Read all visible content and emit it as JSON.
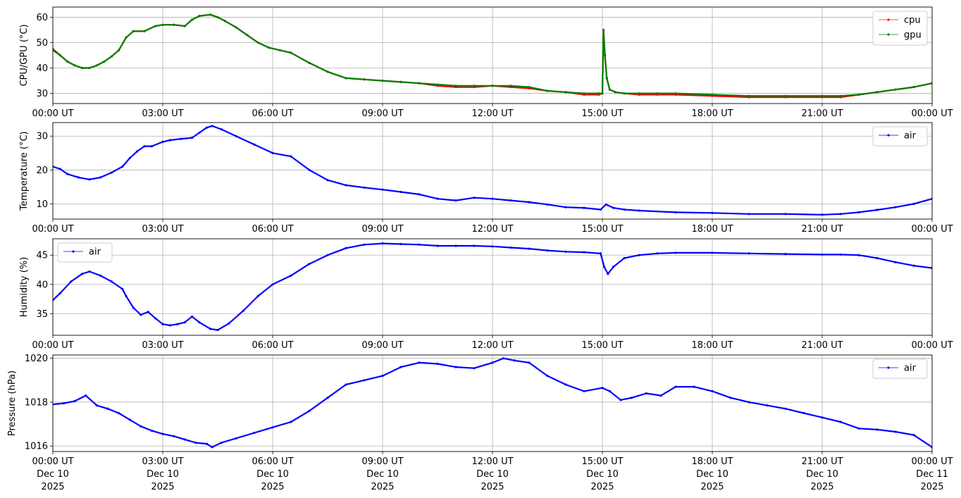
{
  "chart_data": [
    {
      "type": "line",
      "ylabel": "CPU/GPU (°C)",
      "ylim": [
        26,
        64
      ],
      "yticks": [
        30,
        40,
        50,
        60
      ],
      "xlim": [
        "00:00",
        "24:00"
      ],
      "xticks": [
        "00:00 UT",
        "03:00 UT",
        "06:00 UT",
        "09:00 UT",
        "12:00 UT",
        "15:00 UT",
        "18:00 UT",
        "21:00 UT",
        "00:00 UT"
      ],
      "grid": true,
      "legend": "top-right",
      "series": [
        {
          "name": "cpu",
          "color": "#ff0000",
          "x": [
            0,
            0.2,
            0.4,
            0.6,
            0.8,
            1.0,
            1.2,
            1.4,
            1.6,
            1.8,
            2.0,
            2.2,
            2.5,
            2.8,
            3.0,
            3.3,
            3.6,
            3.8,
            4.0,
            4.3,
            4.5,
            4.7,
            5.0,
            5.3,
            5.6,
            5.9,
            6.2,
            6.5,
            7.0,
            7.5,
            8.0,
            8.5,
            9.0,
            9.5,
            10.0,
            10.5,
            11.0,
            11.5,
            12.0,
            12.5,
            13.0,
            13.5,
            14.0,
            14.5,
            14.9,
            15.0,
            15.03,
            15.07,
            15.12,
            15.2,
            15.35,
            15.6,
            16.0,
            16.5,
            17.0,
            18.0,
            19.0,
            20.0,
            21.0,
            21.5,
            22.0,
            22.5,
            23.0,
            23.5,
            24.0
          ],
          "y": [
            47.5,
            45,
            42.5,
            41,
            40,
            40,
            41,
            42.5,
            44.5,
            47,
            52,
            54.5,
            54.5,
            56.5,
            57,
            57,
            56.5,
            59,
            60.5,
            61,
            60,
            58.5,
            56,
            53,
            50,
            48,
            47,
            46,
            42,
            38.5,
            36,
            35.5,
            35,
            34.5,
            34,
            33,
            32.5,
            32.5,
            33,
            32.5,
            32,
            31,
            30.5,
            29.5,
            29.5,
            30,
            55,
            45,
            36,
            31.5,
            30.5,
            30,
            29.5,
            29.5,
            29.5,
            29,
            28.5,
            28.5,
            28.5,
            28.5,
            29.5,
            30.5,
            31.5,
            32.5,
            34
          ]
        },
        {
          "name": "gpu",
          "color": "#008000",
          "x": [
            0,
            0.2,
            0.4,
            0.6,
            0.8,
            1.0,
            1.2,
            1.4,
            1.6,
            1.8,
            2.0,
            2.2,
            2.5,
            2.8,
            3.0,
            3.3,
            3.6,
            3.8,
            4.0,
            4.3,
            4.5,
            4.7,
            5.0,
            5.3,
            5.6,
            5.9,
            6.2,
            6.5,
            7.0,
            7.5,
            8.0,
            8.5,
            9.0,
            9.5,
            10.0,
            10.5,
            11.0,
            11.5,
            12.0,
            12.5,
            13.0,
            13.5,
            14.0,
            14.5,
            14.9,
            15.0,
            15.03,
            15.07,
            15.12,
            15.2,
            15.35,
            15.6,
            16.0,
            16.5,
            17.0,
            18.0,
            19.0,
            20.0,
            21.0,
            21.5,
            22.0,
            22.5,
            23.0,
            23.5,
            24.0
          ],
          "y": [
            47,
            45,
            42.5,
            41,
            40,
            40,
            41,
            42.5,
            44.5,
            47,
            52,
            54.5,
            54.5,
            56.5,
            57,
            57,
            56.5,
            59,
            60.5,
            61,
            60,
            58.5,
            56,
            53,
            50,
            48,
            47,
            46,
            42,
            38.5,
            36,
            35.5,
            35,
            34.5,
            34,
            33.5,
            33,
            33,
            33,
            33,
            32.5,
            31,
            30.5,
            30,
            30,
            30,
            55,
            45,
            36,
            31.5,
            30.5,
            30,
            30,
            30,
            30,
            29.5,
            29,
            29,
            29,
            29,
            29.5,
            30.5,
            31.5,
            32.5,
            34
          ]
        }
      ]
    },
    {
      "type": "line",
      "ylabel": "Temperature (°C)",
      "ylim": [
        5.5,
        34
      ],
      "yticks": [
        10,
        20,
        30
      ],
      "xlim": [
        "00:00",
        "24:00"
      ],
      "xticks": [
        "00:00 UT",
        "03:00 UT",
        "06:00 UT",
        "09:00 UT",
        "12:00 UT",
        "15:00 UT",
        "18:00 UT",
        "21:00 UT",
        "00:00 UT"
      ],
      "grid": true,
      "legend": "top-right",
      "series": [
        {
          "name": "air",
          "color": "#0000ff",
          "x": [
            0,
            0.2,
            0.4,
            0.7,
            1.0,
            1.3,
            1.6,
            1.9,
            2.1,
            2.3,
            2.5,
            2.7,
            3.0,
            3.2,
            3.5,
            3.8,
            4.0,
            4.2,
            4.35,
            4.6,
            5.0,
            5.5,
            6.0,
            6.5,
            7.0,
            7.5,
            8.0,
            8.5,
            9.0,
            9.5,
            10.0,
            10.5,
            11.0,
            11.5,
            12.0,
            12.5,
            13.0,
            13.5,
            14.0,
            14.5,
            14.95,
            15.1,
            15.3,
            15.6,
            16.0,
            17.0,
            18.0,
            19.0,
            20.0,
            21.0,
            21.5,
            22.0,
            22.5,
            23.0,
            23.5,
            24.0
          ],
          "y": [
            21,
            20.3,
            18.8,
            17.8,
            17.2,
            17.8,
            19.2,
            21,
            23.5,
            25.5,
            27,
            27,
            28.3,
            28.8,
            29.2,
            29.5,
            31,
            32.5,
            33,
            32,
            30,
            27.5,
            25,
            24,
            20,
            17,
            15.5,
            14.8,
            14.2,
            13.5,
            12.8,
            11.5,
            11,
            11.8,
            11.5,
            11,
            10.5,
            9.8,
            9,
            8.8,
            8.3,
            9.8,
            8.8,
            8.3,
            8,
            7.5,
            7.3,
            7,
            7,
            6.8,
            7,
            7.5,
            8.2,
            9,
            10,
            11.5
          ]
        }
      ]
    },
    {
      "type": "line",
      "ylabel": "Humidity (%)",
      "ylim": [
        31.3,
        47.8
      ],
      "yticks": [
        35,
        40,
        45
      ],
      "xlim": [
        "00:00",
        "24:00"
      ],
      "xticks": [
        "00:00 UT",
        "03:00 UT",
        "06:00 UT",
        "09:00 UT",
        "12:00 UT",
        "15:00 UT",
        "18:00 UT",
        "21:00 UT",
        "00:00 UT"
      ],
      "grid": true,
      "legend": "top-left",
      "series": [
        {
          "name": "air",
          "color": "#0000ff",
          "x": [
            0,
            0.2,
            0.5,
            0.8,
            1.0,
            1.3,
            1.6,
            1.9,
            2.0,
            2.2,
            2.4,
            2.6,
            2.8,
            3.0,
            3.2,
            3.4,
            3.6,
            3.8,
            4.0,
            4.3,
            4.5,
            4.8,
            5.2,
            5.6,
            6.0,
            6.5,
            7.0,
            7.5,
            8.0,
            8.5,
            9.0,
            9.5,
            10.0,
            10.5,
            11.0,
            11.5,
            12.0,
            12.5,
            13.0,
            13.5,
            14.0,
            14.5,
            14.95,
            15.05,
            15.15,
            15.3,
            15.6,
            16.0,
            16.5,
            17.0,
            18.0,
            19.0,
            20.0,
            21.0,
            21.5,
            22.0,
            22.5,
            23.0,
            23.5,
            24.0
          ],
          "y": [
            37.3,
            38.5,
            40.5,
            41.8,
            42.2,
            41.5,
            40.5,
            39.2,
            38,
            36,
            34.8,
            35.3,
            34.2,
            33.2,
            33,
            33.2,
            33.5,
            34.5,
            33.5,
            32.4,
            32.2,
            33.3,
            35.5,
            38,
            40,
            41.5,
            43.5,
            45,
            46.2,
            46.8,
            47,
            46.9,
            46.8,
            46.6,
            46.6,
            46.6,
            46.5,
            46.3,
            46.1,
            45.8,
            45.6,
            45.5,
            45.3,
            43,
            41.8,
            43,
            44.5,
            45,
            45.3,
            45.4,
            45.4,
            45.3,
            45.2,
            45.1,
            45.1,
            45,
            44.5,
            43.8,
            43.2,
            42.8
          ]
        }
      ]
    },
    {
      "type": "line",
      "ylabel": "Pressure (hPa)",
      "ylim": [
        1015.75,
        1020.15
      ],
      "yticks": [
        1016,
        1018,
        1020
      ],
      "xlim": [
        "2025-12-10 00:00",
        "2025-12-11 00:00"
      ],
      "xticks": [
        [
          "00:00 UT",
          "Dec 10",
          "2025"
        ],
        [
          "03:00 UT",
          "Dec 10",
          "2025"
        ],
        [
          "06:00 UT",
          "Dec 10",
          "2025"
        ],
        [
          "09:00 UT",
          "Dec 10",
          "2025"
        ],
        [
          "12:00 UT",
          "Dec 10",
          "2025"
        ],
        [
          "15:00 UT",
          "Dec 10",
          "2025"
        ],
        [
          "18:00 UT",
          "Dec 10",
          "2025"
        ],
        [
          "21:00 UT",
          "Dec 10",
          "2025"
        ],
        [
          "00:00 UT",
          "Dec 11",
          "2025"
        ]
      ],
      "grid": true,
      "legend": "top-right",
      "series": [
        {
          "name": "air",
          "color": "#0000ff",
          "x": [
            0,
            0.3,
            0.6,
            0.9,
            1.2,
            1.5,
            1.8,
            2.1,
            2.4,
            2.7,
            3.0,
            3.3,
            3.6,
            3.9,
            4.2,
            4.35,
            4.6,
            5.0,
            5.5,
            6.0,
            6.5,
            7.0,
            7.5,
            8.0,
            8.5,
            9.0,
            9.5,
            10.0,
            10.5,
            11.0,
            11.5,
            12.0,
            12.3,
            12.6,
            13.0,
            13.5,
            14.0,
            14.5,
            15.0,
            15.2,
            15.5,
            15.8,
            16.2,
            16.6,
            17.0,
            17.5,
            18.0,
            18.5,
            19.0,
            19.5,
            20.0,
            20.5,
            21.0,
            21.5,
            22.0,
            22.5,
            23.0,
            23.5,
            24.0
          ],
          "y": [
            1017.9,
            1017.95,
            1018.05,
            1018.3,
            1017.85,
            1017.7,
            1017.5,
            1017.2,
            1016.9,
            1016.7,
            1016.55,
            1016.45,
            1016.3,
            1016.15,
            1016.1,
            1015.95,
            1016.15,
            1016.35,
            1016.6,
            1016.85,
            1017.1,
            1017.6,
            1018.2,
            1018.8,
            1019.0,
            1019.2,
            1019.6,
            1019.8,
            1019.75,
            1019.6,
            1019.55,
            1019.8,
            1020.0,
            1019.9,
            1019.8,
            1019.2,
            1018.8,
            1018.5,
            1018.65,
            1018.5,
            1018.1,
            1018.2,
            1018.4,
            1018.3,
            1018.7,
            1018.7,
            1018.5,
            1018.2,
            1018.0,
            1017.85,
            1017.7,
            1017.5,
            1017.3,
            1017.1,
            1016.8,
            1016.75,
            1016.65,
            1016.5,
            1015.95
          ]
        }
      ]
    }
  ]
}
